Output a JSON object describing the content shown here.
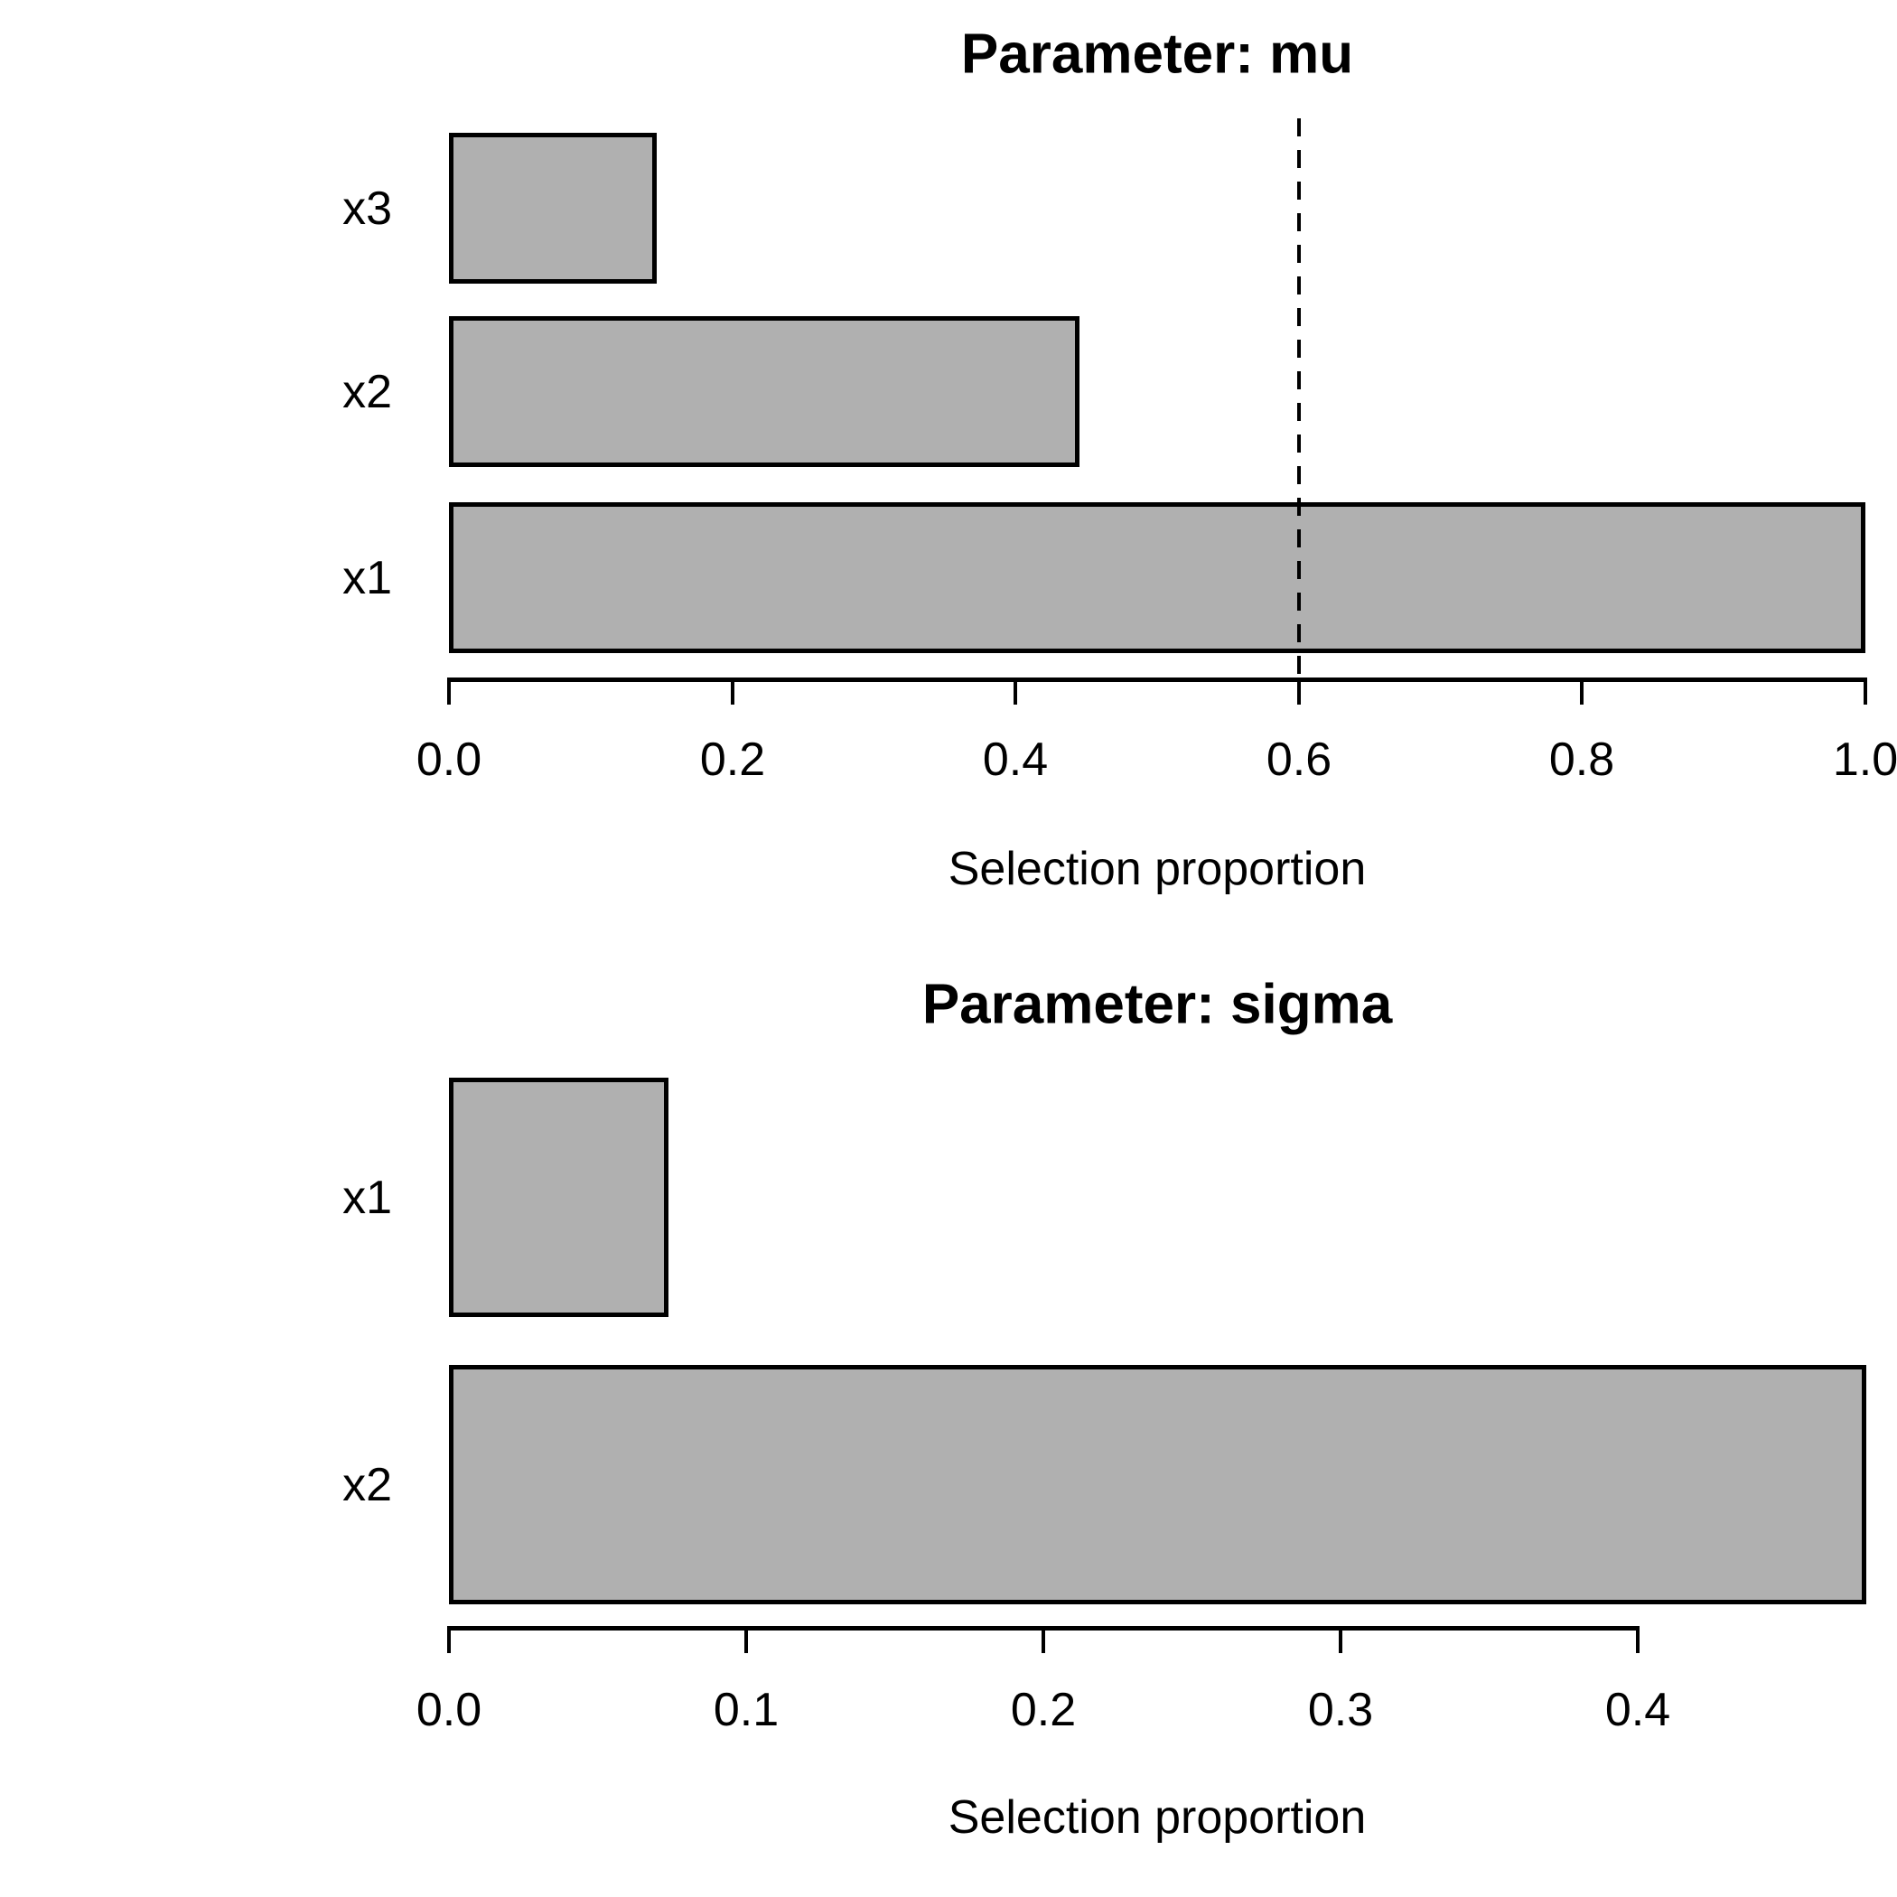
{
  "figure": {
    "background": "#ffffff",
    "bar_fill": "#b0b0b0",
    "bar_border": "#000000",
    "text_color": "#000000"
  },
  "chart_data": [
    {
      "type": "bar",
      "orientation": "horizontal",
      "title": "Parameter: mu",
      "xlabel": "Selection proportion",
      "categories": [
        "x3",
        "x2",
        "x1"
      ],
      "values": [
        0.147,
        0.445,
        1.0
      ],
      "xlim": [
        0,
        1.0
      ],
      "xticks": [
        0,
        0.2,
        0.4,
        0.6,
        0.8,
        1.0
      ],
      "xtick_labels": [
        "0.0",
        "0.2",
        "0.4",
        "0.6",
        "0.8",
        "1.0"
      ],
      "cutoff_line": {
        "value": 0.6,
        "style": "dashed"
      },
      "grid": false,
      "legend": null
    },
    {
      "type": "bar",
      "orientation": "horizontal",
      "title": "Parameter: sigma",
      "xlabel": "Selection proportion",
      "categories": [
        "x1",
        "x2"
      ],
      "values": [
        0.074,
        0.477
      ],
      "xlim": [
        0,
        0.477
      ],
      "xticks": [
        0,
        0.1,
        0.2,
        0.3,
        0.4
      ],
      "xtick_labels": [
        "0.0",
        "0.1",
        "0.2",
        "0.3",
        "0.4"
      ],
      "cutoff_line": null,
      "grid": false,
      "legend": null
    }
  ]
}
